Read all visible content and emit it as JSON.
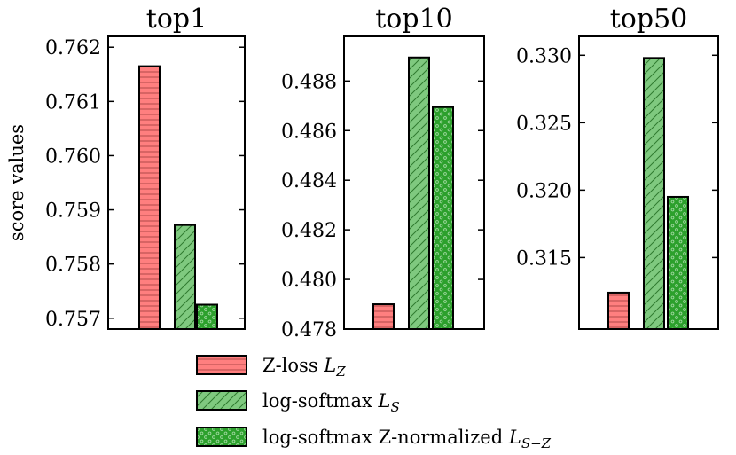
{
  "chart_data": {
    "type": "bar",
    "ylabel": "score values",
    "series_styles": [
      {
        "name": "Z-loss",
        "subscript": "Z",
        "fill": "#ff7f7f",
        "stroke": "#7a1f1f",
        "hatch": "horizontal"
      },
      {
        "name": "log-softmax",
        "subscript": "S",
        "fill": "#7fc97f",
        "stroke": "#1f5a1f",
        "hatch": "diagonal"
      },
      {
        "name": "log-softmax Z-normalized",
        "subscript": "S−Z",
        "fill": "#2ca02c",
        "stroke": "#0b3d0b",
        "hatch": "dots"
      }
    ],
    "legend": [
      {
        "label": "Z-loss",
        "math_symbol": "L",
        "subscript": "Z"
      },
      {
        "label": "log-softmax",
        "math_symbol": "L",
        "subscript": "S"
      },
      {
        "label": "log-softmax Z-normalized",
        "math_symbol": "L",
        "subscript": "S−Z"
      }
    ],
    "legend_position": "bottom-center",
    "panels": [
      {
        "title": "top1",
        "ylim": [
          0.7568,
          0.7622
        ],
        "yticks": [
          0.757,
          0.758,
          0.759,
          0.76,
          0.761,
          0.762
        ],
        "tick_labels": [
          "0.757",
          "0.758",
          "0.759",
          "0.760",
          "0.761",
          "0.762"
        ],
        "values": [
          0.76165,
          0.75872,
          0.75725
        ]
      },
      {
        "title": "top10",
        "ylim": [
          0.478,
          0.4898
        ],
        "yticks": [
          0.478,
          0.48,
          0.482,
          0.484,
          0.486,
          0.488
        ],
        "tick_labels": [
          "0.478",
          "0.480",
          "0.482",
          "0.484",
          "0.486",
          "0.488"
        ],
        "values": [
          0.479,
          0.48895,
          0.48695
        ]
      },
      {
        "title": "top50",
        "ylim": [
          0.3097,
          0.3314
        ],
        "yticks": [
          0.315,
          0.32,
          0.325,
          0.33
        ],
        "tick_labels": [
          "0.315",
          "0.320",
          "0.325",
          "0.330"
        ],
        "values": [
          0.3124,
          0.3298,
          0.3195
        ]
      }
    ]
  }
}
